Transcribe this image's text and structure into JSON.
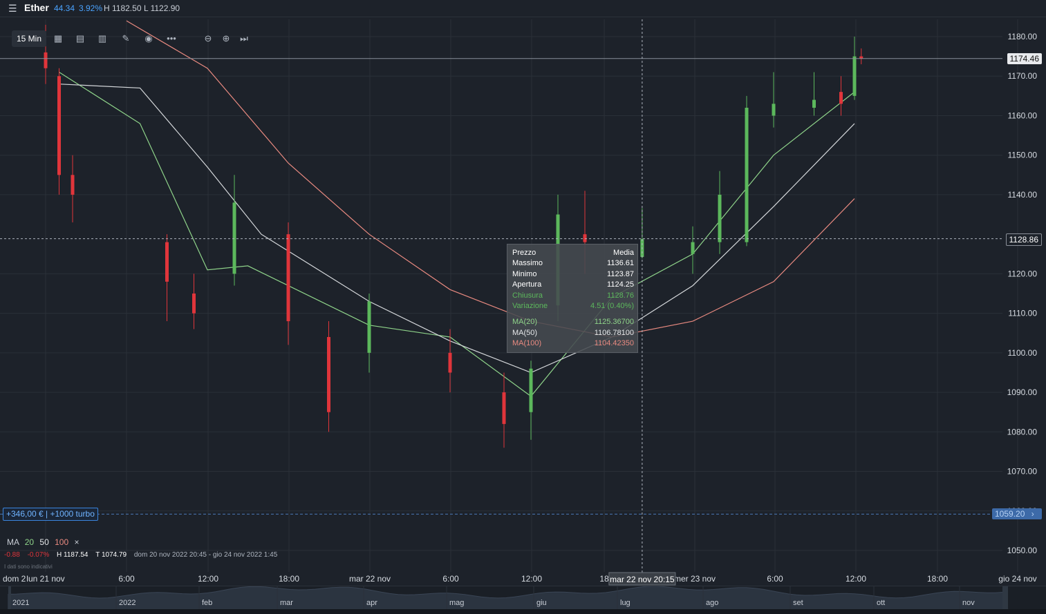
{
  "header": {
    "menu_icon": "menu-icon",
    "instrument": "Ether",
    "change": "44.34",
    "change_pct": "3.92%",
    "high": "H 1182.50",
    "low": "L 1122.90"
  },
  "toolbar": {
    "timeframe": "15 Min",
    "icons": [
      "calendar-icon",
      "copy-layout-icon",
      "chart-type-icon",
      "draw-pencil-icon",
      "eye-icon",
      "more-icon",
      "zoom-out-icon",
      "zoom-in-icon",
      "go-to-end-icon"
    ]
  },
  "price_axis": {
    "labels": [
      "1180.00",
      "1170.00",
      "1160.00",
      "1150.00",
      "1140.00",
      "1120.00",
      "1110.00",
      "1100.00",
      "1090.00",
      "1080.00",
      "1070.00",
      "1060.00",
      "1050.00"
    ],
    "current_price": "1174.46",
    "crosshair_price": "1128.86",
    "position_price": "1059.20"
  },
  "time_axis": {
    "labels": [
      "dom 2",
      "lun 21 nov",
      "6:00",
      "12:00",
      "18:00",
      "mar 22 nov",
      "6:00",
      "12:00",
      "18",
      "mer 23 nov",
      "6:00",
      "12:00",
      "18:00",
      "gio 24 nov"
    ],
    "crosshair_time": "mar 22 nov 20:15"
  },
  "tooltip": {
    "header_left": "Prezzo",
    "header_right": "Media",
    "rows": [
      {
        "label": "Massimo",
        "value": "1136.61"
      },
      {
        "label": "Minimo",
        "value": "1123.87"
      },
      {
        "label": "Apertura",
        "value": "1124.25"
      },
      {
        "label": "Chiusura",
        "value": "1128.76"
      },
      {
        "label": "Variazione",
        "value": "4.51 (0.40%)"
      }
    ],
    "ma_rows": [
      {
        "label": "MA(20)",
        "value": "1125.36700"
      },
      {
        "label": "MA(50)",
        "value": "1106.78100"
      },
      {
        "label": "MA(100)",
        "value": "1104.42350"
      }
    ]
  },
  "position": {
    "label": "+346,00 € | +1000 turbo"
  },
  "ma_legend": {
    "title": "MA",
    "p20": "20",
    "p50": "50",
    "p100": "100",
    "close": "×"
  },
  "summary": {
    "chg": "-0.88",
    "chg_pct": "-0.07%",
    "high": "H 1187.54",
    "low": "T 1074.79",
    "range": "dom 20 nov 2022 20:45 - gio 24 nov 2022 1:45",
    "disclaimer": "I dati sono indicativi"
  },
  "navigator": {
    "labels": [
      "2021",
      "2022",
      "feb",
      "mar",
      "apr",
      "mag",
      "giu",
      "lug",
      "ago",
      "set",
      "ott",
      "nov"
    ]
  },
  "colors": {
    "background": "#1d222a",
    "up": "#5cb85c",
    "down": "#e0353b",
    "ma20": "#8fd48a",
    "ma50": "#d6d9dc",
    "ma100": "#e98a80",
    "accent": "#4aa3ff"
  },
  "chart_data": {
    "type": "candlestick",
    "instrument": "Ether",
    "interval": "15 Min",
    "ylim": [
      1045,
      1185
    ],
    "x_range": [
      "dom 20 nov 2022 20:45",
      "gio 24 nov 2022 1:45"
    ],
    "series": [
      {
        "name": "MA(20)",
        "x": [
          "lun 21 nov 01:00",
          "lun 21 nov 07:00",
          "lun 21 nov 12:00",
          "lun 21 nov 15:00",
          "mar 22 nov 00:00",
          "mar 22 nov 06:00",
          "mar 22 nov 12:00",
          "mar 22 nov 18:00",
          "mer 23 nov 00:00",
          "mer 23 nov 06:00",
          "mer 23 nov 12:00"
        ],
        "values": [
          1171,
          1158,
          1121,
          1122,
          1107,
          1104,
          1089,
          1114,
          1125,
          1150,
          1166
        ]
      },
      {
        "name": "MA(50)",
        "x": [
          "lun 21 nov 01:00",
          "lun 21 nov 07:00",
          "lun 21 nov 12:00",
          "lun 21 nov 16:00",
          "mar 22 nov 00:00",
          "mar 22 nov 06:00",
          "mar 22 nov 12:00",
          "mar 22 nov 18:00",
          "mer 23 nov 00:00",
          "mer 23 nov 06:00",
          "mer 23 nov 12:00"
        ],
        "values": [
          1168,
          1167,
          1147,
          1130,
          1113,
          1103,
          1095,
          1104,
          1117,
          1137,
          1158
        ]
      },
      {
        "name": "MA(100)",
        "x": [
          "lun 21 nov 06:00",
          "lun 21 nov 12:00",
          "lun 21 nov 18:00",
          "mar 22 nov 00:00",
          "mar 22 nov 06:00",
          "mar 22 nov 12:00",
          "mar 22 nov 18:00",
          "mer 23 nov 00:00",
          "mer 23 nov 06:00",
          "mer 23 nov 12:00"
        ],
        "values": [
          1184,
          1172,
          1148,
          1130,
          1116,
          1108,
          1104,
          1108,
          1118,
          1139
        ]
      }
    ],
    "candles": [
      {
        "t": "lun 21 nov 00:00",
        "o": 1176,
        "h": 1183,
        "l": 1168,
        "c": 1172
      },
      {
        "t": "lun 21 nov 01:00",
        "o": 1170,
        "h": 1172,
        "l": 1140,
        "c": 1145
      },
      {
        "t": "lun 21 nov 02:00",
        "o": 1145,
        "h": 1150,
        "l": 1133,
        "c": 1140
      },
      {
        "t": "lun 21 nov 09:00",
        "o": 1128,
        "h": 1130,
        "l": 1108,
        "c": 1118
      },
      {
        "t": "lun 21 nov 11:00",
        "o": 1115,
        "h": 1120,
        "l": 1106,
        "c": 1110
      },
      {
        "t": "lun 21 nov 14:00",
        "o": 1120,
        "h": 1145,
        "l": 1117,
        "c": 1138
      },
      {
        "t": "lun 21 nov 18:00",
        "o": 1130,
        "h": 1133,
        "l": 1102,
        "c": 1108
      },
      {
        "t": "lun 21 nov 21:00",
        "o": 1104,
        "h": 1108,
        "l": 1080,
        "c": 1085
      },
      {
        "t": "mar 22 nov 00:00",
        "o": 1100,
        "h": 1115,
        "l": 1095,
        "c": 1113
      },
      {
        "t": "mar 22 nov 06:00",
        "o": 1100,
        "h": 1106,
        "l": 1090,
        "c": 1095
      },
      {
        "t": "mar 22 nov 10:00",
        "o": 1090,
        "h": 1095,
        "l": 1076,
        "c": 1082
      },
      {
        "t": "mar 22 nov 12:00",
        "o": 1085,
        "h": 1098,
        "l": 1078,
        "c": 1096
      },
      {
        "t": "mar 22 nov 14:00",
        "o": 1112,
        "h": 1140,
        "l": 1108,
        "c": 1135
      },
      {
        "t": "mar 22 nov 16:00",
        "o": 1130,
        "h": 1141,
        "l": 1120,
        "c": 1128
      },
      {
        "t": "mar 22 nov 20:15",
        "o": 1124.25,
        "h": 1136.61,
        "l": 1123.87,
        "c": 1128.76
      },
      {
        "t": "mer 23 nov 00:00",
        "o": 1125,
        "h": 1132,
        "l": 1120,
        "c": 1128
      },
      {
        "t": "mer 23 nov 02:00",
        "o": 1128,
        "h": 1146,
        "l": 1125,
        "c": 1140
      },
      {
        "t": "mer 23 nov 04:00",
        "o": 1128,
        "h": 1165,
        "l": 1127,
        "c": 1162
      },
      {
        "t": "mer 23 nov 06:00",
        "o": 1160,
        "h": 1171,
        "l": 1157,
        "c": 1163
      },
      {
        "t": "mer 23 nov 09:00",
        "o": 1162,
        "h": 1171,
        "l": 1160,
        "c": 1164
      },
      {
        "t": "mer 23 nov 11:00",
        "o": 1166,
        "h": 1170,
        "l": 1160,
        "c": 1163
      },
      {
        "t": "mer 23 nov 12:00",
        "o": 1165,
        "h": 1180,
        "l": 1164,
        "c": 1175
      },
      {
        "t": "mer 23 nov 12:30",
        "o": 1175,
        "h": 1177,
        "l": 1173,
        "c": 1174.46
      }
    ]
  }
}
